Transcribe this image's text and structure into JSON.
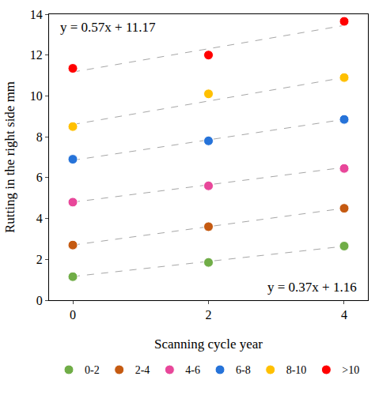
{
  "chart_data": {
    "type": "scatter",
    "x_label": "Scanning cycle year",
    "y_label": "Rutting in the right side mm",
    "x": [
      0,
      2,
      4
    ],
    "xlim": [
      -0.35,
      4.35
    ],
    "xticks": [
      0,
      2,
      4
    ],
    "ylim": [
      0,
      14
    ],
    "yticks": [
      0,
      2,
      4,
      6,
      8,
      10,
      12,
      14
    ],
    "grid": false,
    "legend": "bottom",
    "marker": "circle",
    "annotations": [
      "y = 0.57x + 11.17",
      "y = 0.37x + 1.16"
    ],
    "series": [
      {
        "name": "0-2",
        "color": "#70ad47",
        "values": [
          1.15,
          1.85,
          2.65
        ],
        "trend": {
          "x": [
            0,
            4
          ],
          "y": [
            1.16,
            2.64
          ]
        },
        "line_style": "dash"
      },
      {
        "name": "2-4",
        "color": "#c55a11",
        "values": [
          2.7,
          3.6,
          4.5
        ],
        "trend": {
          "x": [
            0,
            4
          ],
          "y": [
            2.7,
            4.5
          ]
        },
        "line_style": "dash"
      },
      {
        "name": "4-6",
        "color": "#e8479a",
        "values": [
          4.8,
          5.6,
          6.45
        ],
        "trend": {
          "x": [
            0,
            4
          ],
          "y": [
            4.8,
            6.5
          ]
        },
        "line_style": "dash"
      },
      {
        "name": "6-8",
        "color": "#2673d9",
        "values": [
          6.9,
          7.8,
          8.85
        ],
        "trend": {
          "x": [
            0,
            4
          ],
          "y": [
            6.85,
            8.85
          ]
        },
        "line_style": "dash"
      },
      {
        "name": "8-10",
        "color": "#ffc000",
        "values": [
          8.5,
          10.1,
          10.9
        ],
        "trend": {
          "x": [
            0,
            4
          ],
          "y": [
            8.6,
            10.9
          ]
        },
        "line_style": "dash"
      },
      {
        "name": ">10",
        "color": "#ff0000",
        "values": [
          11.35,
          12.0,
          13.65
        ],
        "trend": {
          "x": [
            0,
            4
          ],
          "y": [
            11.17,
            13.45
          ]
        },
        "line_style": "dash"
      }
    ]
  }
}
